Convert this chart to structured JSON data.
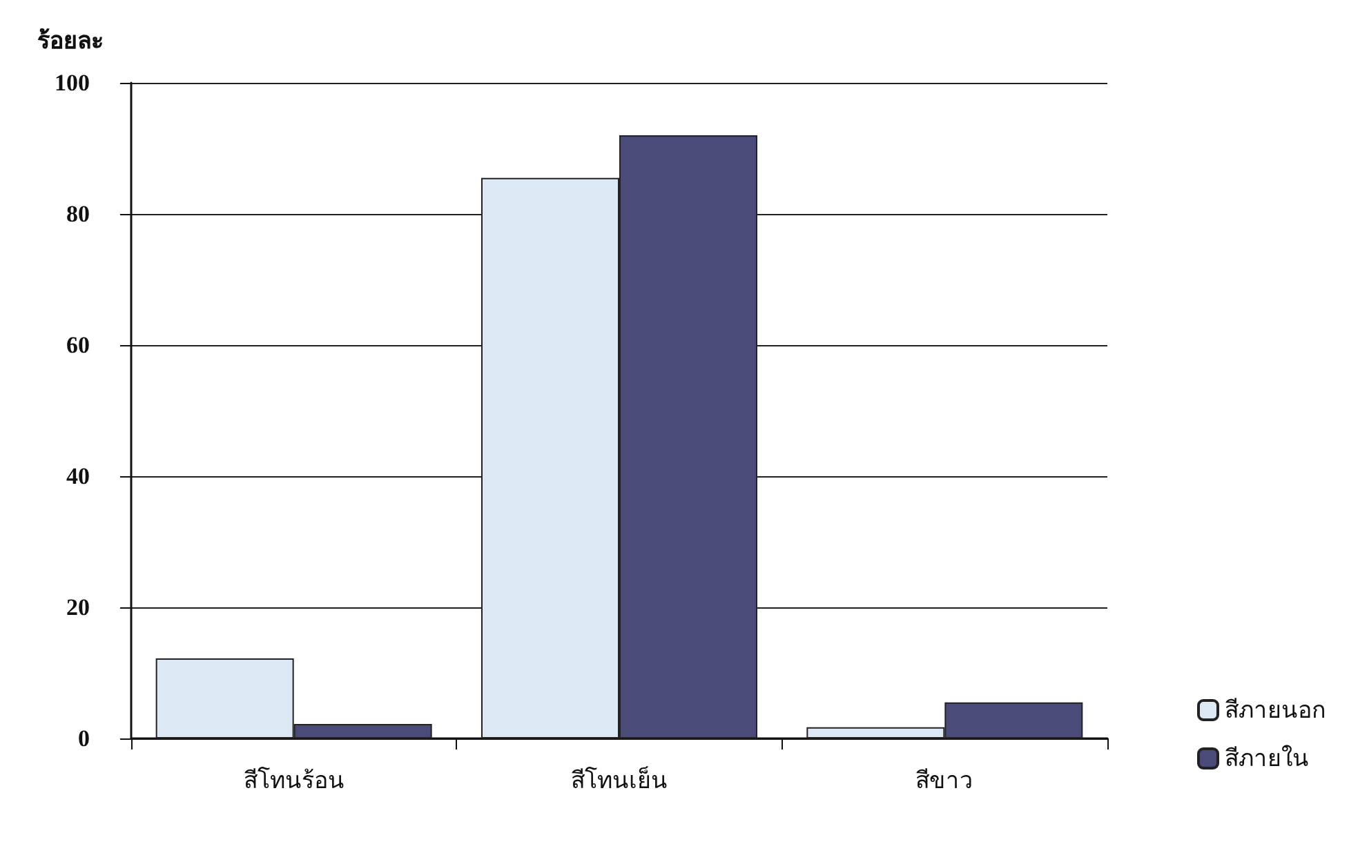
{
  "chart_data": {
    "type": "bar",
    "ylabel": "ร้อยละ",
    "categories": [
      "สีโทนร้อน",
      "สีโทนเย็น",
      "สีขาว"
    ],
    "series": [
      {
        "name": "สีภายนอก",
        "color": "#dde8f5",
        "values": [
          12.2,
          85.5,
          1.7
        ]
      },
      {
        "name": "สีภายใน",
        "color": "#4b4b7a",
        "values": [
          2.2,
          92,
          5.5
        ]
      }
    ],
    "ylim": [
      0,
      100
    ],
    "yticks": [
      0,
      20,
      40,
      60,
      80,
      100
    ],
    "grid": "y",
    "legend": "bottom right"
  }
}
